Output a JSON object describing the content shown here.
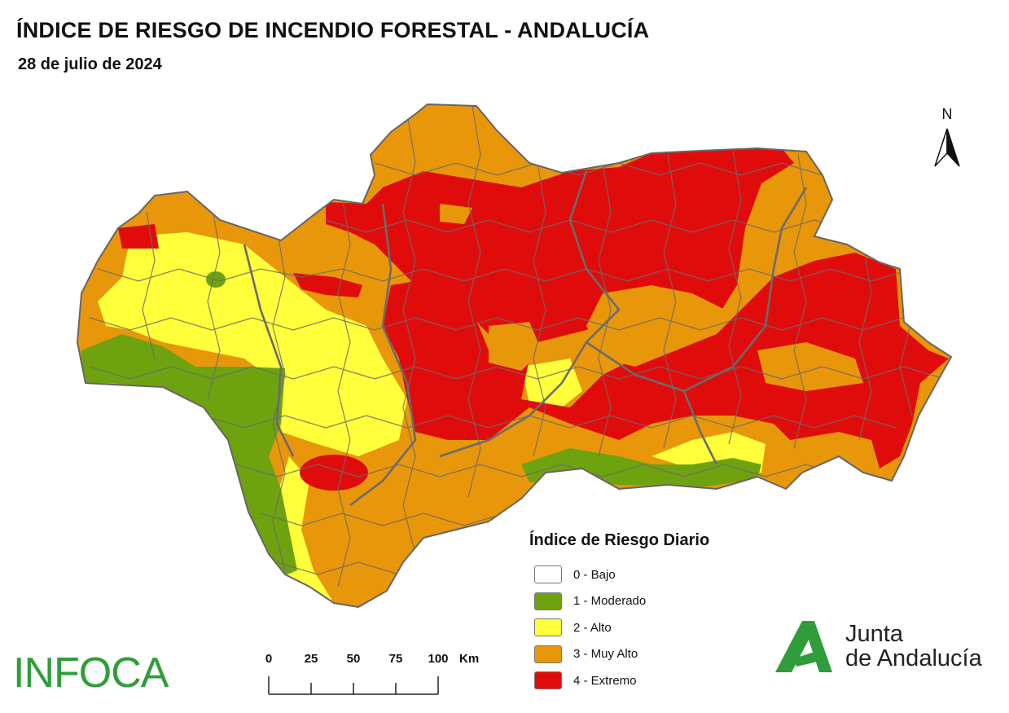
{
  "title": "ÍNDICE DE RIESGO DE INCENDIO FORESTAL - ANDALUCÍA",
  "date": "28 de julio de 2024",
  "north_label": "N",
  "legend": {
    "title": "Índice de Riesgo Diario",
    "items": [
      {
        "label": "0 - Bajo",
        "color": "#ffffff"
      },
      {
        "label": "1 - Moderado",
        "color": "#6fa20f"
      },
      {
        "label": "2 - Alto",
        "color": "#ffff3c"
      },
      {
        "label": "3 - Muy Alto",
        "color": "#e8960a"
      },
      {
        "label": "4 - Extremo",
        "color": "#e00c0c"
      }
    ]
  },
  "scale_bar": {
    "ticks": [
      "0",
      "25",
      "50",
      "75",
      "100"
    ],
    "unit": "Km"
  },
  "logos": {
    "infoca": "INFOCA",
    "junta_line1": "Junta",
    "junta_line2": "de Andalucía"
  },
  "colors": {
    "moderado": "#6fa20f",
    "alto": "#ffff3c",
    "muy_alto": "#e8960a",
    "extremo": "#e00c0c",
    "boundaries": "#6b6b6b",
    "brand_green": "#2f9e3a"
  }
}
